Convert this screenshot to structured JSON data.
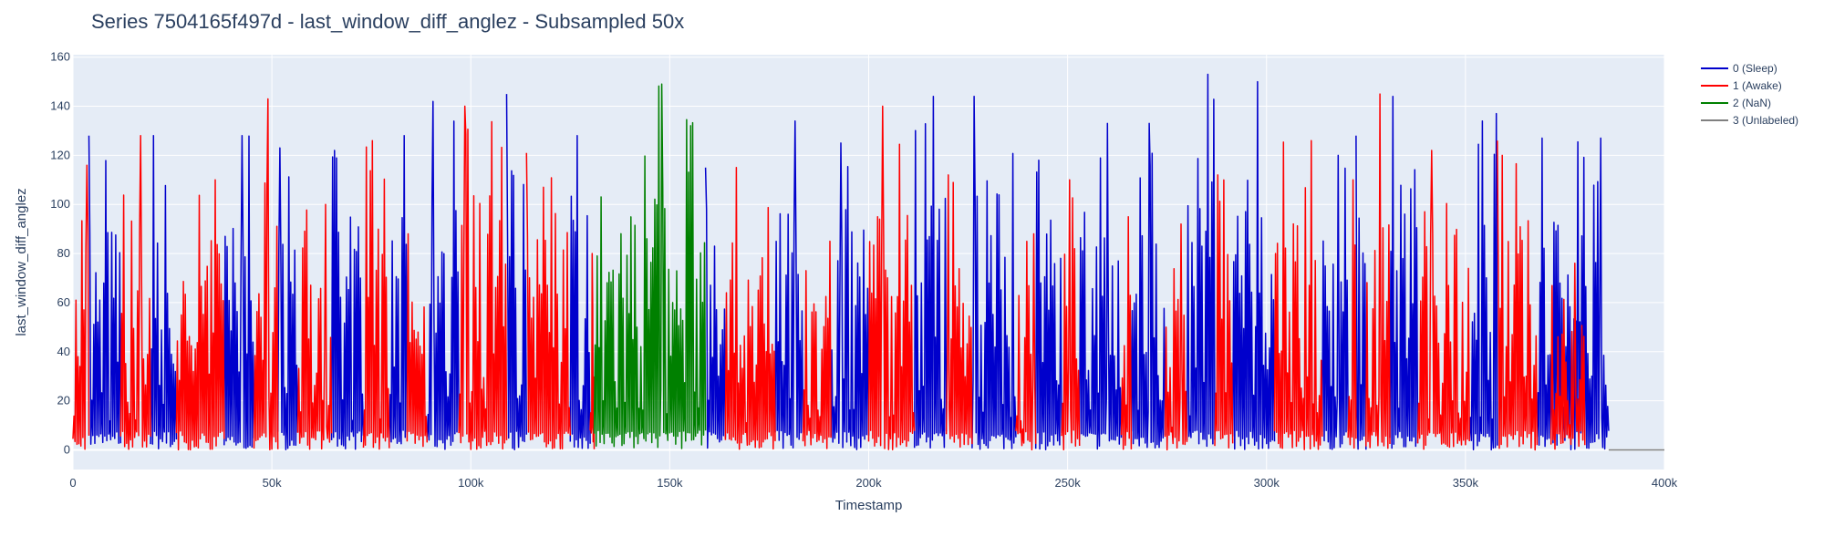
{
  "chart_data": {
    "type": "line",
    "title": "Series 7504165f497d - last_window_diff_anglez - Subsampled 50x",
    "xlabel": "Timestamp",
    "ylabel": "last_window_diff_anglez",
    "xlim": [
      0,
      400000
    ],
    "ylim": [
      -8,
      161
    ],
    "x_ticks": [
      0,
      50000,
      100000,
      150000,
      200000,
      250000,
      300000,
      350000,
      400000
    ],
    "x_tick_labels": [
      "0",
      "50k",
      "100k",
      "150k",
      "200k",
      "250k",
      "300k",
      "350k",
      "400k"
    ],
    "y_ticks": [
      0,
      20,
      40,
      60,
      80,
      100,
      120,
      140,
      160
    ],
    "y_tick_labels": [
      "0",
      "20",
      "40",
      "60",
      "80",
      "100",
      "120",
      "140",
      "160"
    ],
    "grid": true,
    "legend_position": "top-right",
    "series": [
      {
        "name": "0 (Sleep)",
        "color": "#0000cc",
        "segments": [
          [
            4000,
            12000
          ],
          [
            19500,
            26000
          ],
          [
            38000,
            45500
          ],
          [
            51500,
            56500
          ],
          [
            65000,
            73000
          ],
          [
            79500,
            84000
          ],
          [
            89000,
            97000
          ],
          [
            109000,
            114000
          ],
          [
            125000,
            130000
          ],
          [
            159000,
            164000
          ],
          [
            176500,
            183500
          ],
          [
            190500,
            200000
          ],
          [
            211500,
            219500
          ],
          [
            226000,
            237000
          ],
          [
            242000,
            248500
          ],
          [
            253000,
            263500
          ],
          [
            266000,
            274500
          ],
          [
            280000,
            287000
          ],
          [
            291500,
            302000
          ],
          [
            314000,
            320500
          ],
          [
            322500,
            325000
          ],
          [
            331000,
            338000
          ],
          [
            351000,
            358000
          ],
          [
            368000,
            371500
          ],
          [
            371500,
            386000
          ]
        ],
        "peaks": [
          128,
          128,
          128,
          123,
          122,
          128,
          142,
          145,
          128,
          115,
          134,
          125,
          144,
          144,
          118,
          133,
          133,
          153,
          150,
          120,
          128,
          144,
          137,
          127,
          127
        ]
      },
      {
        "name": "1 (Awake)",
        "color": "#ff0000",
        "segments": [
          [
            0,
            4000
          ],
          [
            12000,
            19500
          ],
          [
            26000,
            38000
          ],
          [
            45500,
            51500
          ],
          [
            56500,
            65000
          ],
          [
            73000,
            79500
          ],
          [
            84000,
            89000
          ],
          [
            97000,
            109000
          ],
          [
            114000,
            125000
          ],
          [
            130000,
            131000
          ],
          [
            164000,
            176500
          ],
          [
            183500,
            190500
          ],
          [
            200000,
            211500
          ],
          [
            219500,
            226000
          ],
          [
            237000,
            242000
          ],
          [
            248500,
            253000
          ],
          [
            263500,
            266000
          ],
          [
            274500,
            280000
          ],
          [
            287000,
            291500
          ],
          [
            302000,
            314000
          ],
          [
            320500,
            322500
          ],
          [
            325000,
            331000
          ],
          [
            338000,
            351000
          ],
          [
            358000,
            368000
          ],
          [
            371500,
            380000
          ]
        ],
        "peaks": [
          116,
          128,
          110,
          143,
          100,
          126,
          88,
          140,
          121,
          80,
          115,
          85,
          140,
          112,
          88,
          110,
          95,
          92,
          112,
          126,
          110,
          145,
          122,
          126,
          76
        ]
      },
      {
        "name": "2 (NaN)",
        "color": "#008000",
        "segments": [
          [
            131000,
            159000
          ]
        ],
        "peaks": [
          149
        ]
      },
      {
        "name": "3 (Unlabeled)",
        "color": "#808080",
        "segments": [
          [
            386000,
            400000
          ]
        ],
        "peaks": [
          0
        ]
      }
    ]
  }
}
